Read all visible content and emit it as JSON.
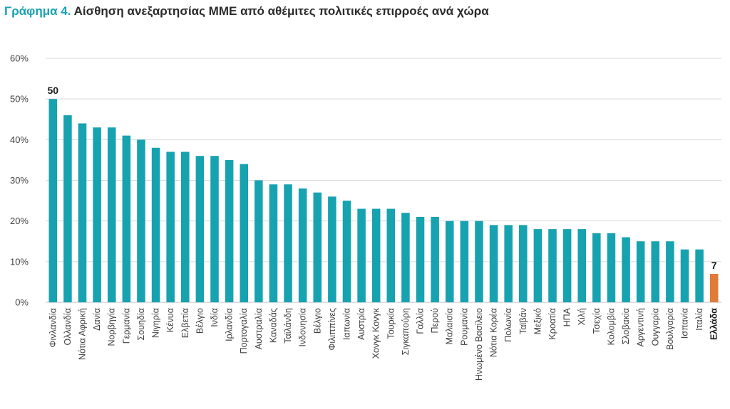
{
  "header": {
    "title_prefix": "Γράφημα 4.",
    "title_text": "Αίσθηση ανεξαρτησίας ΜΜΕ από αθέμιτες πολιτικές επιρροές ανά χώρα"
  },
  "colors": {
    "bar": "#17a2b0",
    "highlight": "#e07b39",
    "grid": "#d9d9d9",
    "axis": "#bfbfbf"
  },
  "chart_data": {
    "type": "bar",
    "title": "Αίσθηση ανεξαρτησίας ΜΜΕ από αθέμιτες πολιτικές επιρροές ανά χώρα",
    "xlabel": "",
    "ylabel": "",
    "ylim": [
      0,
      60
    ],
    "yticks": [
      "0%",
      "10%",
      "20%",
      "30%",
      "40%",
      "50%",
      "60%"
    ],
    "grid": true,
    "highlight_category": "Ελλάδα",
    "data_labels": [
      {
        "category": "Φινλανδία",
        "text": "50"
      },
      {
        "category": "Ελλάδα",
        "text": "7"
      }
    ],
    "categories": [
      "Φινλανδία",
      "Ολλανδία",
      "Νότια Αφρική",
      "Δανία",
      "Νορβηγία",
      "Γερμανία",
      "Σουηδία",
      "Νιγηρία",
      "Κένυα",
      "Ελβετία",
      "Βέλγιο",
      "Ινδία",
      "Ιρλανδία",
      "Πορτογαλία",
      "Αυστραλία",
      "Καναδάς",
      "Ταϊλάνδη",
      "Ινδονησία",
      "Βέλγιο",
      "Φιλιππίνες",
      "Ιαπωνία",
      "Αυστρία",
      "Χονγκ Κονγκ",
      "Τουρκία",
      "Σιγκαπούρη",
      "Γαλλία",
      "Περού",
      "Μαλαισία",
      "Ρουμανία",
      "Ηνωμένο Βασίλειο",
      "Νότια Κορέα",
      "Πολωνία",
      "Ταϊβάν",
      "Μεξικό",
      "Κροατία",
      "ΗΠΑ",
      "Χιλή",
      "Τσεχία",
      "Κολομβία",
      "Σλοβακία",
      "Αργεντινή",
      "Ουγγαρία",
      "Βουλγαρία",
      "Ισπανία",
      "Ιταλία",
      "Ελλάδα"
    ],
    "values": [
      50,
      46,
      44,
      43,
      43,
      41,
      40,
      38,
      37,
      37,
      36,
      36,
      35,
      34,
      30,
      29,
      29,
      28,
      27,
      26,
      25,
      23,
      23,
      23,
      22,
      21,
      21,
      20,
      20,
      20,
      19,
      19,
      19,
      18,
      18,
      18,
      18,
      17,
      17,
      16,
      15,
      15,
      15,
      13,
      13,
      7
    ]
  }
}
